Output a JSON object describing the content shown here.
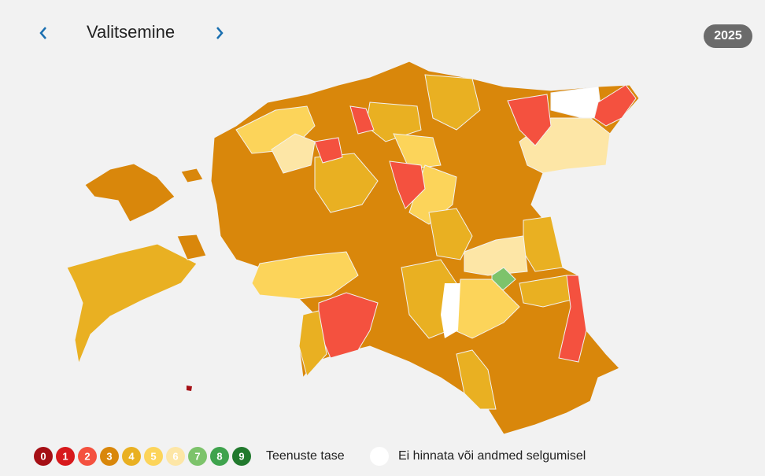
{
  "header": {
    "title": "Valitsemine",
    "year": "2025"
  },
  "legend": {
    "items": [
      {
        "label": "0",
        "color": "#a50f15"
      },
      {
        "label": "1",
        "color": "#d7191c"
      },
      {
        "label": "2",
        "color": "#f4513f"
      },
      {
        "label": "3",
        "color": "#d9870b"
      },
      {
        "label": "4",
        "color": "#e9b022"
      },
      {
        "label": "5",
        "color": "#fcd45a"
      },
      {
        "label": "6",
        "color": "#fde6a6"
      },
      {
        "label": "7",
        "color": "#7dc36b"
      },
      {
        "label": "8",
        "color": "#3fa34d"
      },
      {
        "label": "9",
        "color": "#21792d"
      }
    ],
    "title": "Teenuste tase",
    "na_label": "Ei hinnata või andmed selgumisel"
  }
}
